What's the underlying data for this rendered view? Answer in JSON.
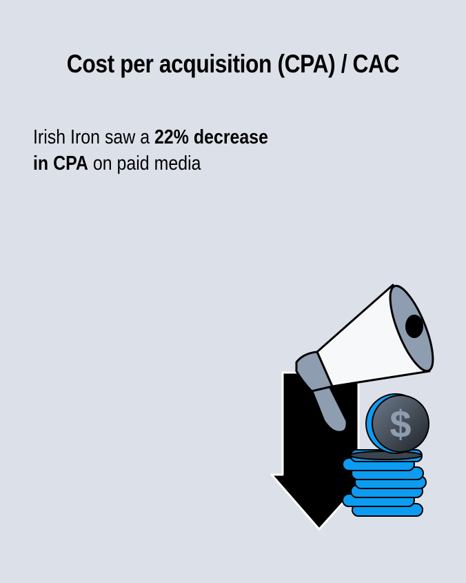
{
  "title": "Cost per acquisition (CPA) / CAC",
  "statement": {
    "line1_prefix": "Irish Iron saw a ",
    "line1_bold": "22% decrease",
    "line2_bold": "in CPA",
    "line2_suffix": " on paid media"
  },
  "illustration": {
    "icons": [
      "down-arrow-icon",
      "megaphone-icon",
      "coin-stack-icon",
      "dollar-coin-icon"
    ],
    "dollar_symbol": "$"
  },
  "colors": {
    "background": "#dce1e9",
    "coin_blue": "#0d9bf0",
    "gray": "#8e9db0",
    "megaphone_white": "#f7f8fa"
  }
}
